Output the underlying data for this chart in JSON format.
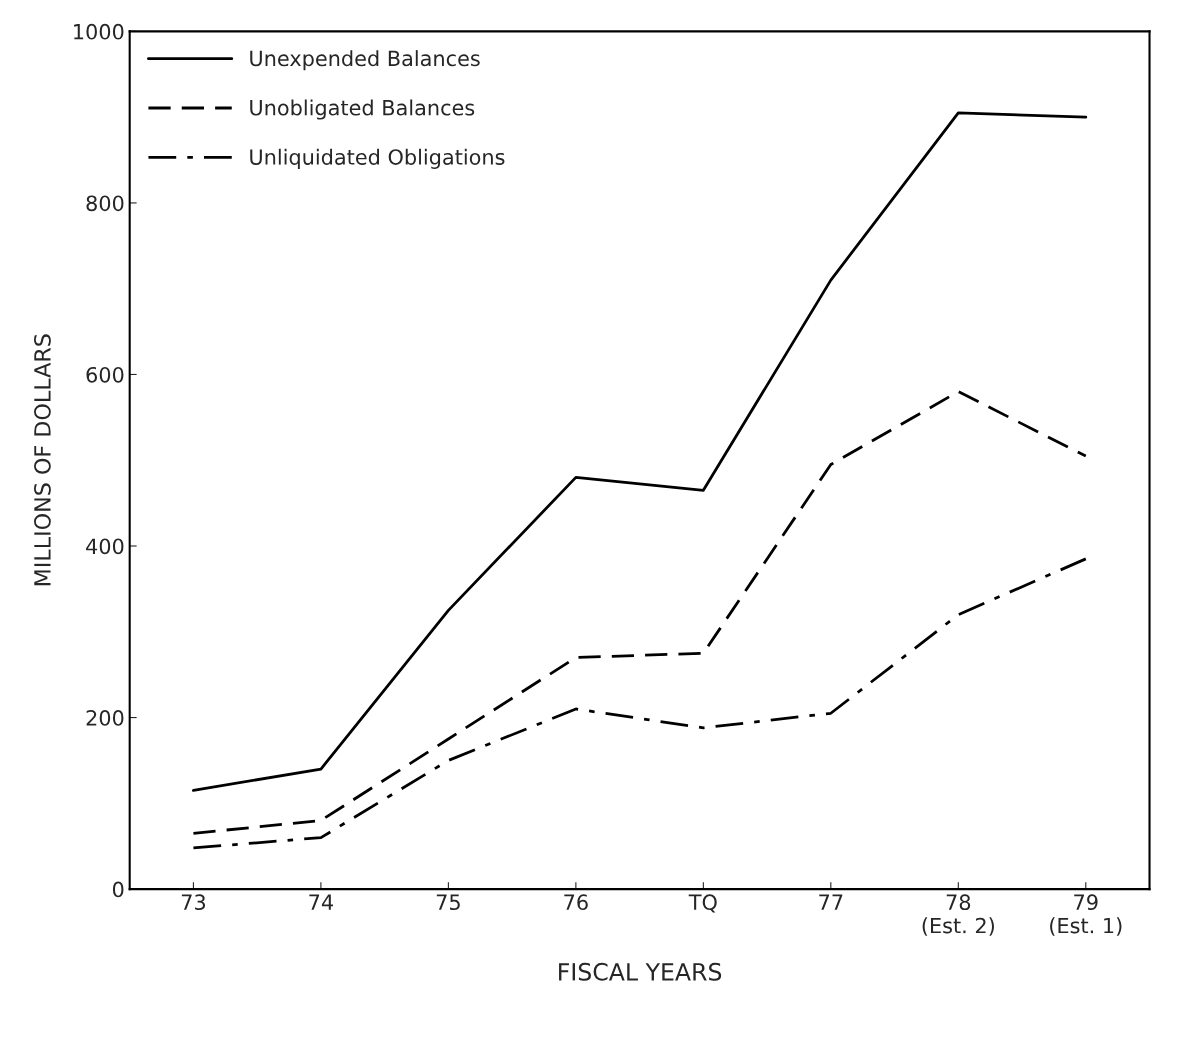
{
  "chart_data": {
    "type": "line",
    "categories": [
      "73",
      "74",
      "75",
      "76",
      "TQ",
      "77",
      "78\n(Est. 2)",
      "79\n(Est. 1)"
    ],
    "series": [
      {
        "name": "Unexpended Balances",
        "color": "#000000",
        "line_style": "solid",
        "values": [
          115,
          140,
          325,
          480,
          465,
          710,
          905,
          900
        ]
      },
      {
        "name": "Unobligated Balances",
        "color": "#000000",
        "line_style": "dashed",
        "values": [
          65,
          80,
          175,
          270,
          275,
          495,
          580,
          505
        ]
      },
      {
        "name": "Unliquidated Obligations",
        "color": "#000000",
        "line_style": "dashdot",
        "values": [
          48,
          60,
          150,
          210,
          188,
          205,
          320,
          385
        ]
      }
    ],
    "xlabel": "FISCAL YEARS",
    "ylabel": "MILLIONS OF DOLLARS",
    "ylim": [
      0,
      1000
    ],
    "yticks": [
      0,
      200,
      400,
      600,
      800,
      1000
    ],
    "grid": false,
    "legend": "top left",
    "marker": "none"
  }
}
